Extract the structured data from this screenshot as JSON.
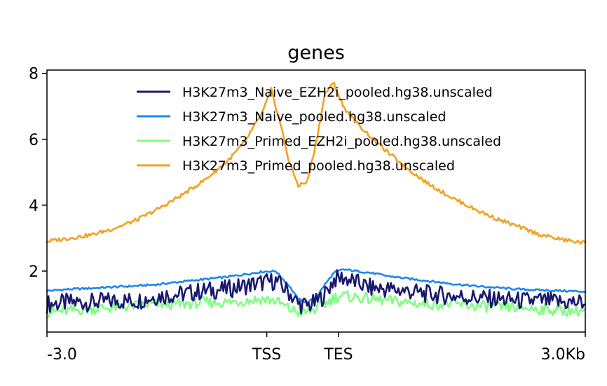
{
  "chart_data": {
    "type": "line",
    "title": "genes",
    "xlabel": "",
    "ylabel": "",
    "x_ticks": [
      {
        "label": "-3.0",
        "x": -3.0
      },
      {
        "label": "TSS",
        "x": -0.55
      },
      {
        "label": "TES",
        "x": 0.25
      },
      {
        "label": "3.0Kb",
        "x": 3.0
      }
    ],
    "y_ticks": [
      2,
      4,
      6,
      8
    ],
    "xlim": [
      -3.0,
      3.0
    ],
    "ylim": [
      0.15,
      8.1
    ],
    "grid": false,
    "legend_position": "top-right",
    "series": [
      {
        "name": "H3K27m3_Naive_EZH2i_pooled.hg38.unscaled",
        "color": "#191970",
        "x": [
          -3.0,
          -2.75,
          -2.5,
          -2.25,
          -2.0,
          -1.75,
          -1.5,
          -1.25,
          -1.0,
          -0.8,
          -0.6,
          -0.45,
          -0.3,
          -0.2,
          -0.1,
          0.0,
          0.1,
          0.2,
          0.3,
          0.45,
          0.6,
          0.8,
          1.0,
          1.25,
          1.5,
          1.75,
          2.0,
          2.25,
          2.5,
          2.75,
          3.0
        ],
        "values": [
          1.0,
          1.05,
          1.05,
          1.1,
          1.1,
          1.25,
          1.3,
          1.4,
          1.45,
          1.55,
          1.65,
          1.7,
          1.35,
          1.0,
          0.95,
          1.05,
          1.3,
          1.75,
          1.8,
          1.65,
          1.5,
          1.45,
          1.4,
          1.3,
          1.25,
          1.2,
          1.15,
          1.1,
          1.1,
          1.05,
          1.05
        ]
      },
      {
        "name": "H3K27m3_Naive_pooled.hg38.unscaled",
        "color": "#1e87f0",
        "x": [
          -3.0,
          -2.75,
          -2.5,
          -2.25,
          -2.0,
          -1.75,
          -1.5,
          -1.25,
          -1.0,
          -0.8,
          -0.6,
          -0.45,
          -0.3,
          -0.2,
          -0.1,
          0.0,
          0.1,
          0.2,
          0.3,
          0.45,
          0.6,
          0.8,
          1.0,
          1.25,
          1.5,
          1.75,
          2.0,
          2.25,
          2.5,
          2.75,
          3.0
        ],
        "values": [
          1.4,
          1.45,
          1.48,
          1.52,
          1.55,
          1.6,
          1.68,
          1.75,
          1.82,
          1.9,
          1.98,
          2.0,
          1.55,
          1.15,
          1.05,
          1.2,
          1.6,
          1.95,
          2.05,
          2.0,
          1.95,
          1.85,
          1.78,
          1.7,
          1.62,
          1.55,
          1.5,
          1.45,
          1.42,
          1.4,
          1.38
        ]
      },
      {
        "name": "H3K27m3_Primed_EZH2i_pooled.hg38.unscaled",
        "color": "#80ff80",
        "x": [
          -3.0,
          -2.75,
          -2.5,
          -2.25,
          -2.0,
          -1.75,
          -1.5,
          -1.25,
          -1.0,
          -0.8,
          -0.6,
          -0.45,
          -0.3,
          -0.2,
          -0.1,
          0.0,
          0.1,
          0.2,
          0.3,
          0.45,
          0.6,
          0.8,
          1.0,
          1.25,
          1.5,
          1.75,
          2.0,
          2.25,
          2.5,
          2.75,
          3.0
        ],
        "values": [
          0.75,
          0.8,
          0.85,
          0.9,
          0.95,
          1.0,
          1.0,
          1.05,
          1.05,
          1.1,
          1.15,
          1.1,
          0.85,
          0.75,
          0.75,
          0.85,
          1.0,
          1.2,
          1.25,
          1.2,
          1.15,
          1.1,
          1.05,
          1.0,
          1.0,
          0.95,
          0.9,
          0.9,
          0.85,
          0.8,
          0.8
        ]
      },
      {
        "name": "H3K27m3_Primed_pooled.hg38.unscaled",
        "color": "#f5a020",
        "x": [
          -3.0,
          -2.75,
          -2.5,
          -2.25,
          -2.0,
          -1.75,
          -1.5,
          -1.25,
          -1.0,
          -0.8,
          -0.6,
          -0.5,
          -0.4,
          -0.3,
          -0.2,
          -0.1,
          0.0,
          0.1,
          0.2,
          0.3,
          0.45,
          0.6,
          0.8,
          1.0,
          1.25,
          1.5,
          1.75,
          2.0,
          2.25,
          2.5,
          2.75,
          3.0
        ],
        "values": [
          2.9,
          3.0,
          3.1,
          3.3,
          3.55,
          3.9,
          4.3,
          4.75,
          5.3,
          5.9,
          6.8,
          7.5,
          6.5,
          5.3,
          4.6,
          4.7,
          5.9,
          7.4,
          7.7,
          7.0,
          6.5,
          6.1,
          5.6,
          5.15,
          4.65,
          4.25,
          3.9,
          3.6,
          3.35,
          3.1,
          2.95,
          2.85
        ]
      }
    ]
  }
}
